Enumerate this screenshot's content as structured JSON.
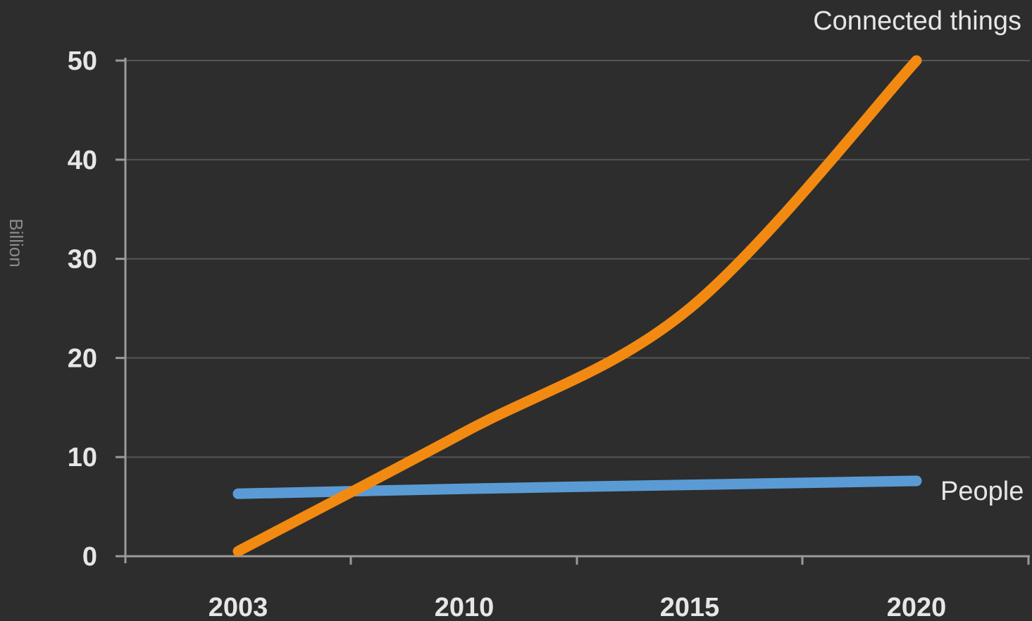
{
  "chart_data": {
    "type": "line",
    "ylabel": "Billion",
    "ylim": [
      0,
      50
    ],
    "yticks": [
      "0",
      "10",
      "20",
      "30",
      "40",
      "50"
    ],
    "xticks": [
      "2003",
      "2010",
      "2015",
      "2020"
    ],
    "grid": true,
    "series": [
      {
        "name": "Connected things",
        "color": "#f28a12",
        "points": [
          {
            "x": "2003",
            "y": 0.5
          },
          {
            "x": "2010",
            "y": 12.5
          },
          {
            "x": "2015",
            "y": 25
          },
          {
            "x": "2020",
            "y": 50
          }
        ]
      },
      {
        "name": "People",
        "color": "#5b9bd5",
        "points": [
          {
            "x": "2003",
            "y": 6.3
          },
          {
            "x": "2010",
            "y": 6.8
          },
          {
            "x": "2015",
            "y": 7.2
          },
          {
            "x": "2020",
            "y": 7.6
          }
        ]
      }
    ]
  }
}
